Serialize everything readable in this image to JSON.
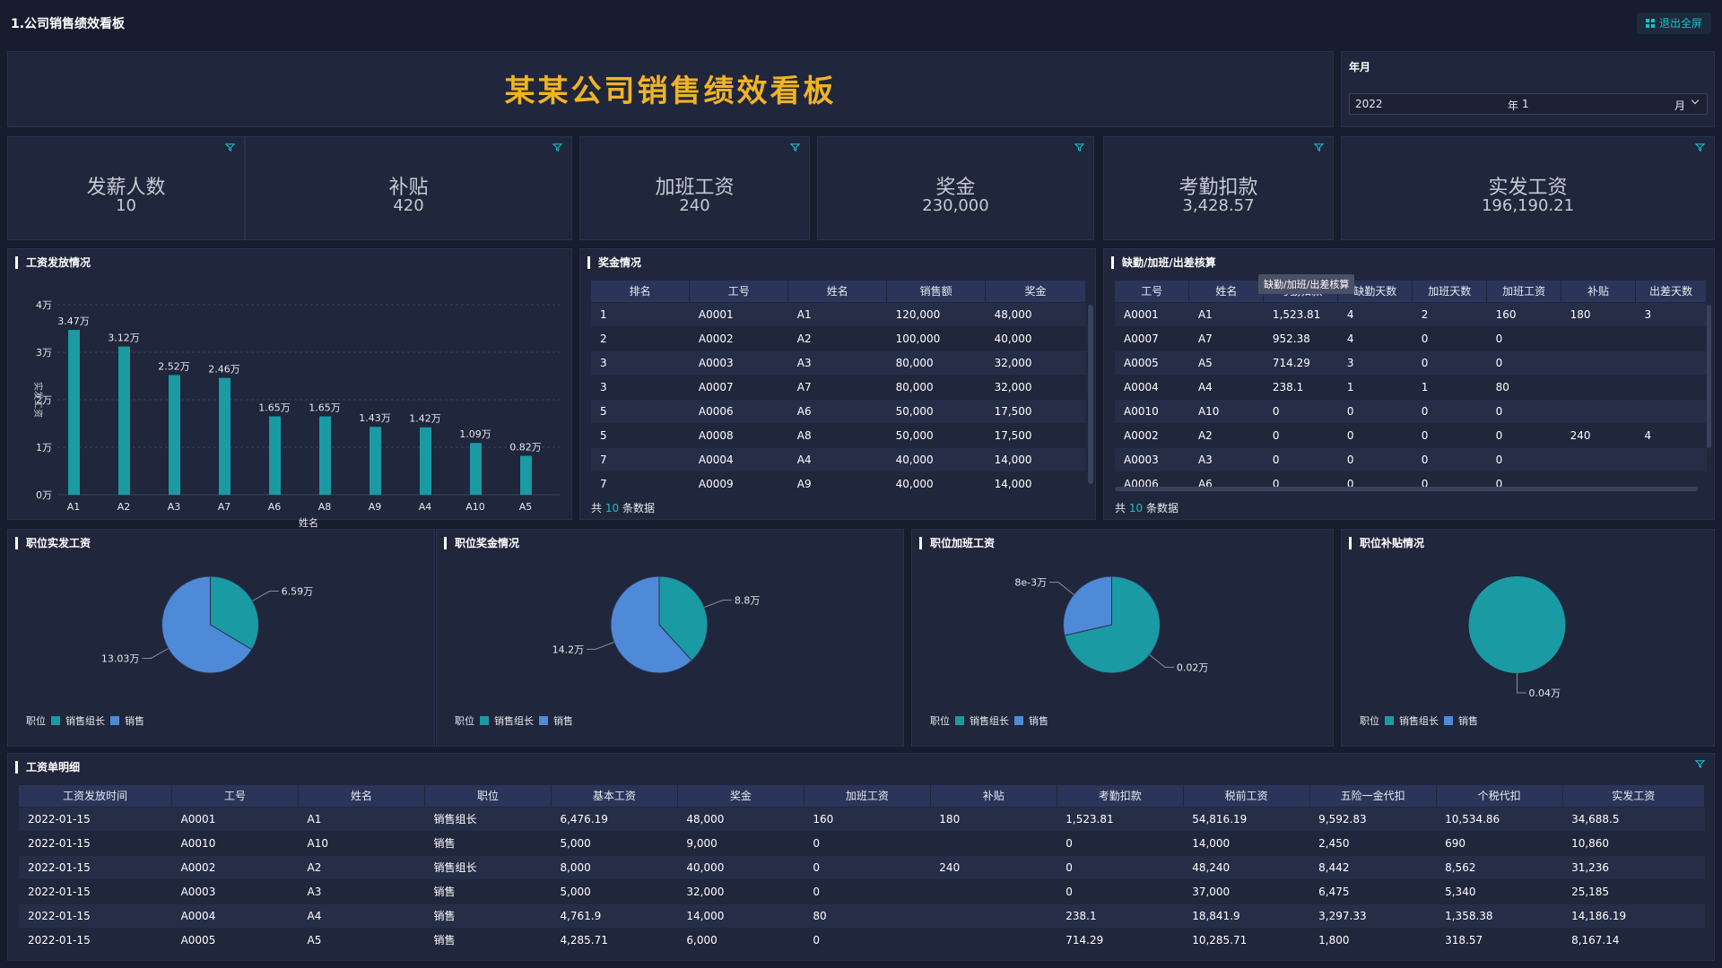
{
  "page_title": "1.公司销售绩效看板",
  "exit_fullscreen": "退出全屏",
  "banner_title": "某某公司销售绩效看板",
  "year_month": {
    "label": "年月",
    "year": "2022",
    "year_unit": "年",
    "month": "1",
    "month_unit": "月"
  },
  "kpis": [
    {
      "label": "发薪人数",
      "value": "10"
    },
    {
      "label": "补贴",
      "value": "420"
    },
    {
      "label": "加班工资",
      "value": "240"
    },
    {
      "label": "奖金",
      "value": "230,000"
    },
    {
      "label": "考勤扣款",
      "value": "3,428.57"
    },
    {
      "label": "实发工资",
      "value": "196,190.21"
    }
  ],
  "salary_chart": {
    "title": "工资发放情况",
    "chart_data": {
      "type": "bar",
      "categories": [
        "A1",
        "A2",
        "A3",
        "A7",
        "A6",
        "A8",
        "A9",
        "A4",
        "A10",
        "A5"
      ],
      "values": [
        3.47,
        3.12,
        2.52,
        2.46,
        1.65,
        1.65,
        1.43,
        1.42,
        1.09,
        0.82
      ],
      "data_labels": [
        "3.47万",
        "3.12万",
        "2.52万",
        "2.46万",
        "1.65万",
        "1.65万",
        "1.43万",
        "1.42万",
        "1.09万",
        "0.82万"
      ],
      "yticks": [
        "0万",
        "1万",
        "2万",
        "3万",
        "4万"
      ],
      "ylim": [
        0,
        4
      ],
      "xlabel": "姓名",
      "ylabel": "实发工资",
      "color": "#1a9aa3"
    }
  },
  "bonus_table": {
    "title": "奖金情况",
    "headers": [
      "排名",
      "工号",
      "姓名",
      "销售额",
      "奖金"
    ],
    "rows": [
      [
        "1",
        "A0001",
        "A1",
        "120,000",
        "48,000"
      ],
      [
        "2",
        "A0002",
        "A2",
        "100,000",
        "40,000"
      ],
      [
        "3",
        "A0003",
        "A3",
        "80,000",
        "32,000"
      ],
      [
        "3",
        "A0007",
        "A7",
        "80,000",
        "32,000"
      ],
      [
        "5",
        "A0006",
        "A6",
        "50,000",
        "17,500"
      ],
      [
        "5",
        "A0008",
        "A8",
        "50,000",
        "17,500"
      ],
      [
        "7",
        "A0004",
        "A4",
        "40,000",
        "14,000"
      ],
      [
        "7",
        "A0009",
        "A9",
        "40,000",
        "14,000"
      ]
    ],
    "footer_prefix": "共",
    "footer_count": "10",
    "footer_suffix": "条数据"
  },
  "attendance_table": {
    "title": "缺勤/加班/出差核算",
    "tooltip": "缺勤/加班/出差核算",
    "headers": [
      "工号",
      "姓名",
      "考勤扣款",
      "缺勤天数",
      "加班天数",
      "加班工资",
      "补贴",
      "出差天数"
    ],
    "rows": [
      [
        "A0001",
        "A1",
        "1,523.81",
        "4",
        "2",
        "160",
        "180",
        "3"
      ],
      [
        "A0007",
        "A7",
        "952.38",
        "4",
        "0",
        "0",
        "",
        ""
      ],
      [
        "A0005",
        "A5",
        "714.29",
        "3",
        "0",
        "0",
        "",
        ""
      ],
      [
        "A0004",
        "A4",
        "238.1",
        "1",
        "1",
        "80",
        "",
        ""
      ],
      [
        "A0010",
        "A10",
        "0",
        "0",
        "0",
        "0",
        "",
        ""
      ],
      [
        "A0002",
        "A2",
        "0",
        "0",
        "0",
        "0",
        "240",
        "4"
      ],
      [
        "A0003",
        "A3",
        "0",
        "0",
        "0",
        "0",
        "",
        ""
      ],
      [
        "A0006",
        "A6",
        "0",
        "0",
        "0",
        "0",
        "",
        ""
      ]
    ],
    "footer_prefix": "共",
    "footer_count": "10",
    "footer_suffix": "条数据"
  },
  "pies": [
    {
      "title": "职位实发工资",
      "legend_title": "职位",
      "legend": [
        "销售组长",
        "销售"
      ],
      "chart_data": {
        "type": "pie",
        "labels": [
          "销售组长",
          "销售"
        ],
        "values": [
          6.59,
          13.03
        ],
        "data_labels": [
          "6.59万",
          "13.03万"
        ]
      }
    },
    {
      "title": "职位奖金情况",
      "legend_title": "职位",
      "legend": [
        "销售组长",
        "销售"
      ],
      "chart_data": {
        "type": "pie",
        "labels": [
          "销售组长",
          "销售"
        ],
        "values": [
          8.8,
          14.2
        ],
        "data_labels": [
          "8.8万",
          "14.2万"
        ]
      }
    },
    {
      "title": "职位加班工资",
      "legend_title": "职位",
      "legend": [
        "销售组长",
        "销售"
      ],
      "chart_data": {
        "type": "pie",
        "labels": [
          "销售组长",
          "销售"
        ],
        "values": [
          0.02,
          0.008
        ],
        "data_labels": [
          "0.02万",
          "8e-3万"
        ]
      }
    },
    {
      "title": "职位补贴情况",
      "legend_title": "职位",
      "legend": [
        "销售组长",
        "销售"
      ],
      "chart_data": {
        "type": "pie",
        "labels": [
          "销售组长",
          "销售"
        ],
        "values": [
          0.04,
          0
        ],
        "data_labels": [
          "0.04万",
          ""
        ]
      }
    }
  ],
  "pie_colors": [
    "#1a9aa3",
    "#4f8ad9"
  ],
  "detail_table": {
    "title": "工资单明细",
    "headers": [
      "工资发放时间",
      "工号",
      "姓名",
      "职位",
      "基本工资",
      "奖金",
      "加班工资",
      "补贴",
      "考勤扣款",
      "税前工资",
      "五险一金代扣",
      "个税代扣",
      "实发工资"
    ],
    "rows": [
      [
        "2022-01-15",
        "A0001",
        "A1",
        "销售组长",
        "6,476.19",
        "48,000",
        "160",
        "180",
        "1,523.81",
        "54,816.19",
        "9,592.83",
        "10,534.86",
        "34,688.5"
      ],
      [
        "2022-01-15",
        "A0010",
        "A10",
        "销售",
        "5,000",
        "9,000",
        "0",
        "",
        "0",
        "14,000",
        "2,450",
        "690",
        "10,860"
      ],
      [
        "2022-01-15",
        "A0002",
        "A2",
        "销售组长",
        "8,000",
        "40,000",
        "0",
        "240",
        "0",
        "48,240",
        "8,442",
        "8,562",
        "31,236"
      ],
      [
        "2022-01-15",
        "A0003",
        "A3",
        "销售",
        "5,000",
        "32,000",
        "0",
        "",
        "0",
        "37,000",
        "6,475",
        "5,340",
        "25,185"
      ],
      [
        "2022-01-15",
        "A0004",
        "A4",
        "销售",
        "4,761.9",
        "14,000",
        "80",
        "",
        "238.1",
        "18,841.9",
        "3,297.33",
        "1,358.38",
        "14,186.19"
      ],
      [
        "2022-01-15",
        "A0005",
        "A5",
        "销售",
        "4,285.71",
        "6,000",
        "0",
        "",
        "714.29",
        "10,285.71",
        "1,800",
        "318.57",
        "8,167.14"
      ]
    ]
  }
}
